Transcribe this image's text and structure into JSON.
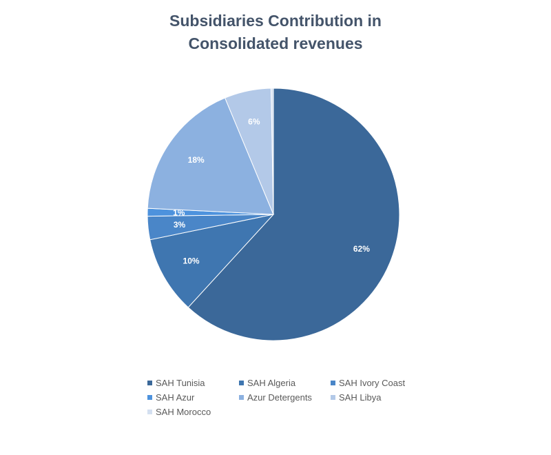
{
  "chart_data": {
    "type": "pie",
    "title": [
      "Subsidiaries Contribution in",
      "Consolidated revenues"
    ],
    "legend_position": "bottom",
    "slices": [
      {
        "name": "SAH Tunisia",
        "value": 62,
        "label": "62%",
        "color": "#3b6899"
      },
      {
        "name": "SAH Algeria",
        "value": 10,
        "label": "10%",
        "color": "#3f76b0"
      },
      {
        "name": "SAH Ivory Coast",
        "value": 3,
        "label": "3%",
        "color": "#4a86c8"
      },
      {
        "name": "SAH Azur",
        "value": 1,
        "label": "1%",
        "color": "#4d92dd"
      },
      {
        "name": "Azur Detergents",
        "value": 18,
        "label": "18%",
        "color": "#8cb1e0"
      },
      {
        "name": "SAH Libya",
        "value": 6,
        "label": "6%",
        "color": "#b3c9e8"
      },
      {
        "name": "SAH Morocco",
        "value": 0.3,
        "label": "",
        "color": "#d4e0f1"
      }
    ]
  }
}
